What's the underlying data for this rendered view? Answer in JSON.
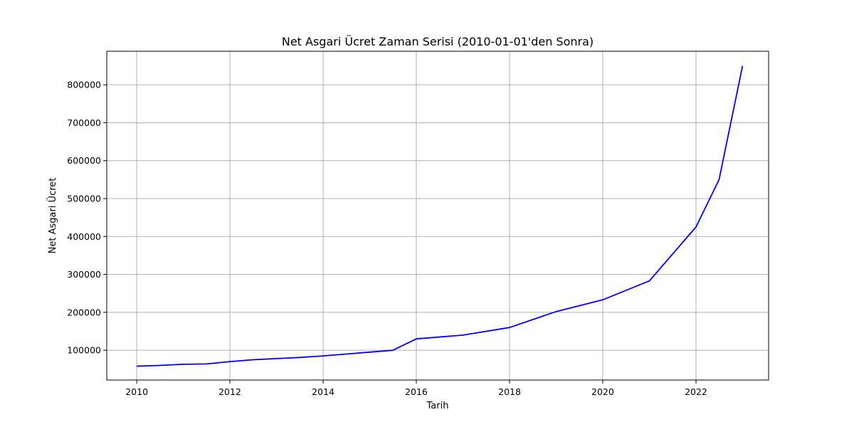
{
  "chart_data": {
    "type": "line",
    "title": "Net Asgari Ücret Zaman Serisi (2010-01-01'den Sonra)",
    "xlabel": "Tarih",
    "ylabel": "Net Asgari Ücret",
    "grid": true,
    "xlim": [
      "2009-05-11",
      "2023-07-24"
    ],
    "ylim": [
      21500,
      888500
    ],
    "x_ticks": [
      "2010",
      "2012",
      "2014",
      "2016",
      "2018",
      "2020",
      "2022"
    ],
    "y_ticks": [
      100000,
      200000,
      300000,
      400000,
      500000,
      600000,
      700000,
      800000
    ],
    "series": [
      {
        "color": "#0000ff",
        "x": [
          "2010-01-01",
          "2010-07-01",
          "2011-01-01",
          "2011-07-01",
          "2012-01-01",
          "2012-07-01",
          "2013-01-01",
          "2013-07-01",
          "2014-01-01",
          "2014-07-01",
          "2015-01-01",
          "2015-07-01",
          "2016-01-01",
          "2017-01-01",
          "2018-01-01",
          "2019-01-01",
          "2020-01-01",
          "2021-01-01",
          "2022-01-01",
          "2022-07-01",
          "2023-01-01"
        ],
        "y": [
          58000,
          60000,
          63000,
          64000,
          70000,
          75000,
          78000,
          81000,
          85000,
          90000,
          95000,
          100000,
          130000,
          140000,
          160000,
          202000,
          233000,
          283000,
          425000,
          550000,
          850000
        ]
      }
    ]
  }
}
